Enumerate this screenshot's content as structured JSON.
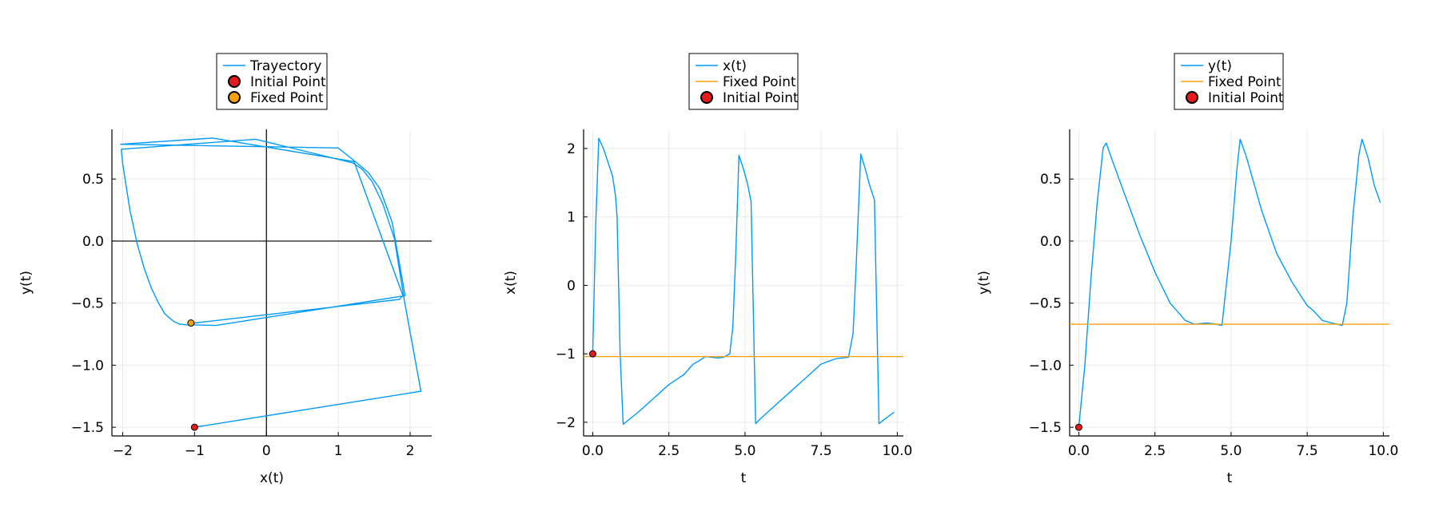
{
  "chart_data": [
    {
      "type": "line",
      "title": "",
      "xlabel": "x(t)",
      "ylabel": "y(t)",
      "xlim": [
        -2.15,
        2.3
      ],
      "ylim": [
        -1.57,
        0.9
      ],
      "xticks": [
        -2,
        -1,
        0,
        1,
        2
      ],
      "xtick_labels": [
        "−2",
        "−1",
        "0",
        "1",
        "2"
      ],
      "yticks": [
        -1.5,
        -1.0,
        -0.5,
        0.0,
        0.5
      ],
      "ytick_labels": [
        "−1.5",
        "−1.0",
        "−0.5",
        "0.0",
        "0.5"
      ],
      "grid": true,
      "zero_lines": true,
      "legend_position": "outer-top",
      "series": [
        {
          "name": "Trayectory",
          "kind": "line",
          "color": "#009AFA",
          "x": [
            -1.0,
            2.15,
            1.92,
            1.78,
            1.62,
            1.47,
            1.33,
            1.2,
            -0.15,
            -2.02,
            -2.0,
            -1.9,
            -1.8,
            -1.7,
            -1.6,
            -1.5,
            -1.42,
            -1.35,
            -1.28,
            -1.2,
            -1.1,
            -1.0,
            -0.7,
            1.93,
            1.75,
            1.58,
            1.42,
            1.28,
            1.0,
            -2.03,
            -0.75,
            1.22,
            1.9,
            1.85,
            -1.0
          ],
          "y": [
            -1.5,
            -1.21,
            -0.48,
            0.02,
            0.3,
            0.48,
            0.58,
            0.63,
            0.82,
            0.74,
            0.62,
            0.25,
            -0.02,
            -0.22,
            -0.38,
            -0.5,
            -0.58,
            -0.62,
            -0.65,
            -0.67,
            -0.675,
            -0.675,
            -0.68,
            -0.44,
            0.15,
            0.42,
            0.55,
            0.62,
            0.75,
            0.78,
            0.83,
            0.64,
            -0.44,
            -0.47,
            -0.66
          ]
        },
        {
          "name": "Initial Point",
          "kind": "point",
          "color": "#E41A1C",
          "x": [
            -1.0
          ],
          "y": [
            -1.5
          ]
        },
        {
          "name": "Fixed Point",
          "kind": "point",
          "color": "#F6A20C",
          "x": [
            -1.05
          ],
          "y": [
            -0.66
          ]
        }
      ]
    },
    {
      "type": "line",
      "title": "",
      "xlabel": "t",
      "ylabel": "x(t)",
      "xlim": [
        -0.3,
        10.2
      ],
      "ylim": [
        -2.2,
        2.28
      ],
      "xticks": [
        0,
        2.5,
        5,
        7.5,
        10
      ],
      "xtick_labels": [
        "0.0",
        "2.5",
        "5.0",
        "7.5",
        "10.0"
      ],
      "yticks": [
        -2,
        -1,
        0,
        1,
        2
      ],
      "ytick_labels": [
        "−2",
        "−1",
        "0",
        "1",
        "2"
      ],
      "grid": true,
      "zero_lines": false,
      "legend_position": "outer-top",
      "series": [
        {
          "name": "x(t)",
          "kind": "line",
          "color": "#009AFA",
          "x": [
            0,
            0.1,
            0.2,
            0.35,
            0.5,
            0.65,
            0.75,
            0.8,
            0.9,
            1.0,
            1.5,
            2.0,
            2.5,
            3.0,
            3.3,
            3.5,
            3.7,
            3.9,
            4.1,
            4.3,
            4.5,
            4.6,
            4.7,
            4.8,
            4.95,
            5.1,
            5.2,
            5.35,
            5.5,
            6.0,
            6.5,
            7.0,
            7.5,
            7.8,
            8.0,
            8.2,
            8.4,
            8.55,
            8.65,
            8.8,
            8.95,
            9.1,
            9.25,
            9.4,
            9.6,
            9.9
          ],
          "y": [
            -1.0,
            0.9,
            2.15,
            2.0,
            1.8,
            1.6,
            1.3,
            1.0,
            -1.0,
            -2.03,
            -1.85,
            -1.65,
            -1.45,
            -1.3,
            -1.15,
            -1.1,
            -1.04,
            -1.05,
            -1.06,
            -1.05,
            -1.0,
            -0.6,
            0.5,
            1.9,
            1.7,
            1.45,
            1.22,
            -2.02,
            -1.95,
            -1.75,
            -1.55,
            -1.35,
            -1.15,
            -1.1,
            -1.07,
            -1.06,
            -1.05,
            -0.7,
            0.3,
            1.92,
            1.7,
            1.45,
            1.25,
            -2.02,
            -1.95,
            -1.85
          ]
        },
        {
          "name": "Fixed Point",
          "kind": "hline",
          "color": "#F6A20C",
          "y": [
            -1.04
          ]
        },
        {
          "name": "Initial Point",
          "kind": "point",
          "color": "#E41A1C",
          "x": [
            0
          ],
          "y": [
            -1.0
          ]
        }
      ]
    },
    {
      "type": "line",
      "title": "",
      "xlabel": "t",
      "ylabel": "y(t)",
      "xlim": [
        -0.3,
        10.2
      ],
      "ylim": [
        -1.57,
        0.9
      ],
      "xticks": [
        0,
        2.5,
        5,
        7.5,
        10
      ],
      "xtick_labels": [
        "0.0",
        "2.5",
        "5.0",
        "7.5",
        "10.0"
      ],
      "yticks": [
        -1.5,
        -1.0,
        -0.5,
        0.0,
        0.5
      ],
      "ytick_labels": [
        "−1.5",
        "−1.0",
        "−0.5",
        "0.0",
        "0.5"
      ],
      "grid": true,
      "zero_lines": false,
      "legend_position": "outer-top",
      "series": [
        {
          "name": "y(t)",
          "kind": "line",
          "color": "#009AFA",
          "x": [
            0,
            0.2,
            0.4,
            0.6,
            0.8,
            0.9,
            1.1,
            1.5,
            2.0,
            2.5,
            3.0,
            3.5,
            3.8,
            4.2,
            4.5,
            4.7,
            5.0,
            5.2,
            5.3,
            5.5,
            6.0,
            6.5,
            7.0,
            7.5,
            7.7,
            8.0,
            8.3,
            8.5,
            8.65,
            8.8,
            9.0,
            9.2,
            9.3,
            9.5,
            9.7,
            9.9
          ],
          "y": [
            -1.5,
            -1.0,
            -0.3,
            0.3,
            0.75,
            0.79,
            0.65,
            0.38,
            0.05,
            -0.25,
            -0.5,
            -0.64,
            -0.67,
            -0.66,
            -0.67,
            -0.68,
            0.0,
            0.6,
            0.82,
            0.68,
            0.25,
            -0.1,
            -0.33,
            -0.52,
            -0.56,
            -0.64,
            -0.66,
            -0.67,
            -0.68,
            -0.5,
            0.2,
            0.7,
            0.82,
            0.67,
            0.45,
            0.31
          ]
        },
        {
          "name": "Fixed Point",
          "kind": "hline",
          "color": "#F6A20C",
          "y": [
            -0.67
          ]
        },
        {
          "name": "Initial Point",
          "kind": "point",
          "color": "#E41A1C",
          "x": [
            0
          ],
          "y": [
            -1.5
          ]
        }
      ]
    }
  ]
}
